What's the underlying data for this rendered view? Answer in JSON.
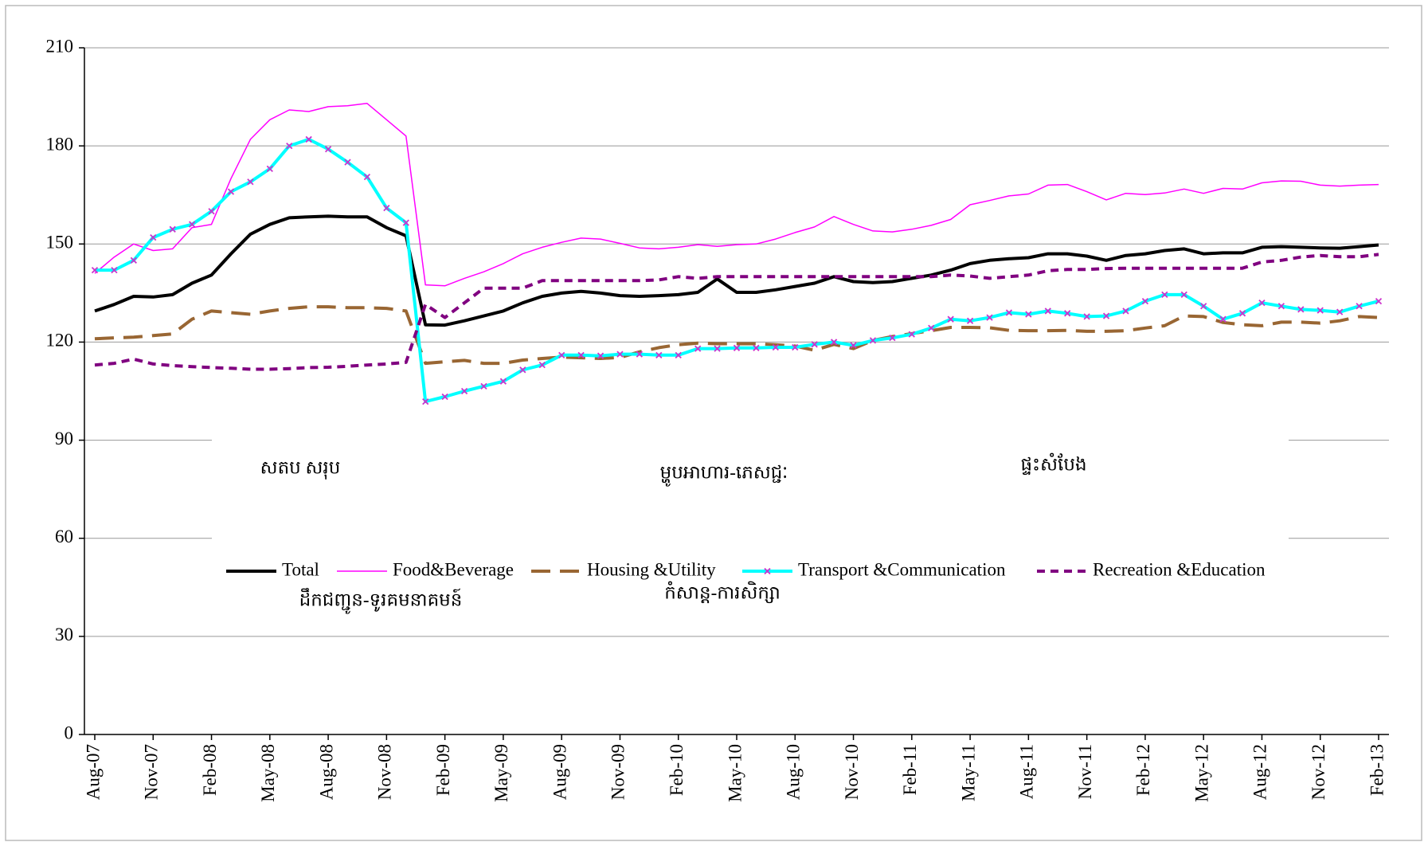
{
  "chart_data": {
    "type": "line",
    "categories": [
      "Aug-07",
      null,
      null,
      "Nov-07",
      null,
      null,
      "Feb-08",
      null,
      null,
      "May-08",
      null,
      null,
      "Aug-08",
      null,
      null,
      "Nov-08",
      null,
      null,
      "Feb-09",
      null,
      null,
      "May-09",
      null,
      null,
      "Aug-09",
      null,
      null,
      "Nov-09",
      null,
      null,
      "Feb-10",
      null,
      null,
      "May-10",
      null,
      null,
      "Aug-10",
      null,
      null,
      "Nov-10",
      null,
      null,
      "Feb-11",
      null,
      null,
      "May-11",
      null,
      null,
      "Aug-11",
      null,
      null,
      "Nov-11",
      null,
      null,
      "Feb-12",
      null,
      null,
      "May-12",
      null,
      null,
      "Aug-12",
      null,
      null,
      "Nov-12",
      null,
      null,
      "Feb-13"
    ],
    "series": [
      {
        "name": "Total",
        "color": "#000000",
        "width": 4,
        "style": "solid",
        "values": [
          129.5,
          131.5,
          134,
          133.8,
          134.5,
          138,
          140.5,
          147,
          153,
          156,
          158,
          158.3,
          158.5,
          158.3,
          158.3,
          155,
          152.5,
          125.3,
          125.2,
          126.5,
          128,
          129.5,
          132,
          134,
          135,
          135.5,
          135,
          134.2,
          134,
          134.2,
          134.5,
          135.2,
          139.3,
          135.2,
          135.2,
          136,
          137,
          138,
          140,
          138.5,
          138.2,
          138.5,
          139.5,
          140.5,
          142,
          144,
          145,
          145.5,
          145.8,
          147,
          147,
          146.3,
          145,
          146.5,
          147,
          148,
          148.5,
          147,
          147.3,
          147.3,
          149,
          149.2,
          149,
          148.8,
          148.7,
          149.2,
          149.7
        ]
      },
      {
        "name": "Food&Beverage",
        "color": "#ff00ff",
        "width": 1.5,
        "style": "solid",
        "values": [
          141,
          146,
          150,
          148,
          148.5,
          155,
          156,
          170,
          182,
          188,
          191,
          190.5,
          192,
          192.3,
          193,
          188,
          183,
          137.5,
          137.2,
          139.5,
          141.5,
          144,
          147,
          149,
          150.5,
          151.8,
          151.5,
          150.2,
          148.8,
          148.5,
          149,
          149.8,
          149.3,
          149.8,
          150,
          151.5,
          153.5,
          155.2,
          158.4,
          156,
          154,
          153.7,
          154.5,
          155.7,
          157.5,
          162,
          163.3,
          164.7,
          165.3,
          168,
          168.2,
          166,
          163.5,
          165.5,
          165.1,
          165.6,
          166.8,
          165.5,
          167,
          166.8,
          168.7,
          169.3,
          169.2,
          168,
          167.7,
          168,
          168.2
        ]
      },
      {
        "name": "Housing &Utility",
        "color": "#996633",
        "width": 4,
        "style": "long-dash",
        "values": [
          121,
          121.3,
          121.5,
          122,
          122.5,
          127,
          129.5,
          129,
          128.5,
          129.5,
          130.3,
          130.8,
          130.8,
          130.5,
          130.5,
          130.3,
          129.5,
          113.5,
          114,
          114.4,
          113.5,
          113.5,
          114.5,
          115,
          115.4,
          115.2,
          115,
          115.3,
          117,
          118.3,
          119.2,
          119.7,
          119.5,
          119.5,
          119.5,
          119.2,
          118.8,
          117.5,
          119.3,
          118,
          120.5,
          121.7,
          122.6,
          123.5,
          124.5,
          124.5,
          124.4,
          123.6,
          123.5,
          123.5,
          123.6,
          123.3,
          123.3,
          123.5,
          124.3,
          125,
          128,
          127.8,
          126,
          125.3,
          125,
          126.1,
          126.1,
          125.8,
          126.5,
          127.8,
          127.5
        ]
      },
      {
        "name": "Transport &Communication",
        "color": "#00ffff",
        "width": 4,
        "style": "solid",
        "marker": "x",
        "marker_color": "#cc33cc",
        "values": [
          142,
          142,
          145,
          152,
          154.5,
          156,
          160,
          166,
          169,
          173,
          180,
          182,
          179,
          175,
          170.5,
          161,
          156.5,
          101.8,
          103.3,
          105,
          106.5,
          108,
          111.5,
          113,
          116,
          116,
          115.8,
          116.3,
          116.3,
          116,
          116,
          118,
          118,
          118.2,
          118.2,
          118.4,
          118.4,
          119.3,
          120,
          119,
          120.5,
          121.3,
          122.4,
          124.3,
          127,
          126.5,
          127.5,
          129,
          128.5,
          129.5,
          128.8,
          127.8,
          128,
          129.5,
          132.5,
          134.5,
          134.5,
          131,
          127,
          128.8,
          132,
          131,
          130,
          129.7,
          129.2,
          131,
          132.5
        ]
      },
      {
        "name": "Recreation &Education",
        "color": "#800080",
        "width": 4,
        "style": "short-dash",
        "values": [
          113,
          113.5,
          114.8,
          113.3,
          112.8,
          112.5,
          112.2,
          112,
          111.7,
          111.7,
          111.9,
          112.2,
          112.3,
          112.6,
          113,
          113.3,
          113.8,
          131.5,
          127.5,
          132,
          136.5,
          136.5,
          136.5,
          138.8,
          138.8,
          138.8,
          138.8,
          138.8,
          138.8,
          139,
          140,
          139.5,
          140,
          140,
          140,
          140,
          140,
          140,
          140,
          140,
          140,
          140,
          140,
          140,
          140.5,
          140.2,
          139.5,
          140,
          140.5,
          141.8,
          142.2,
          142.2,
          142.5,
          142.6,
          142.6,
          142.6,
          142.6,
          142.6,
          142.6,
          142.6,
          144.5,
          145,
          146,
          146.5,
          146.1,
          146.1,
          146.8
        ]
      }
    ],
    "annotations": [
      "សតប សរុប",
      "ម្ហូបអាហារ-ភេសជ្ជៈ",
      "ផ្ទះសំបែង",
      "ដឹកជញ្ជូន-ទូរគមនាគមន៍",
      "កំសាន្ត-ការសិក្សា"
    ],
    "ylim": [
      0,
      210
    ],
    "yticks": [
      0,
      30,
      60,
      90,
      120,
      150,
      180,
      210
    ],
    "grid": true,
    "legend": "center"
  }
}
